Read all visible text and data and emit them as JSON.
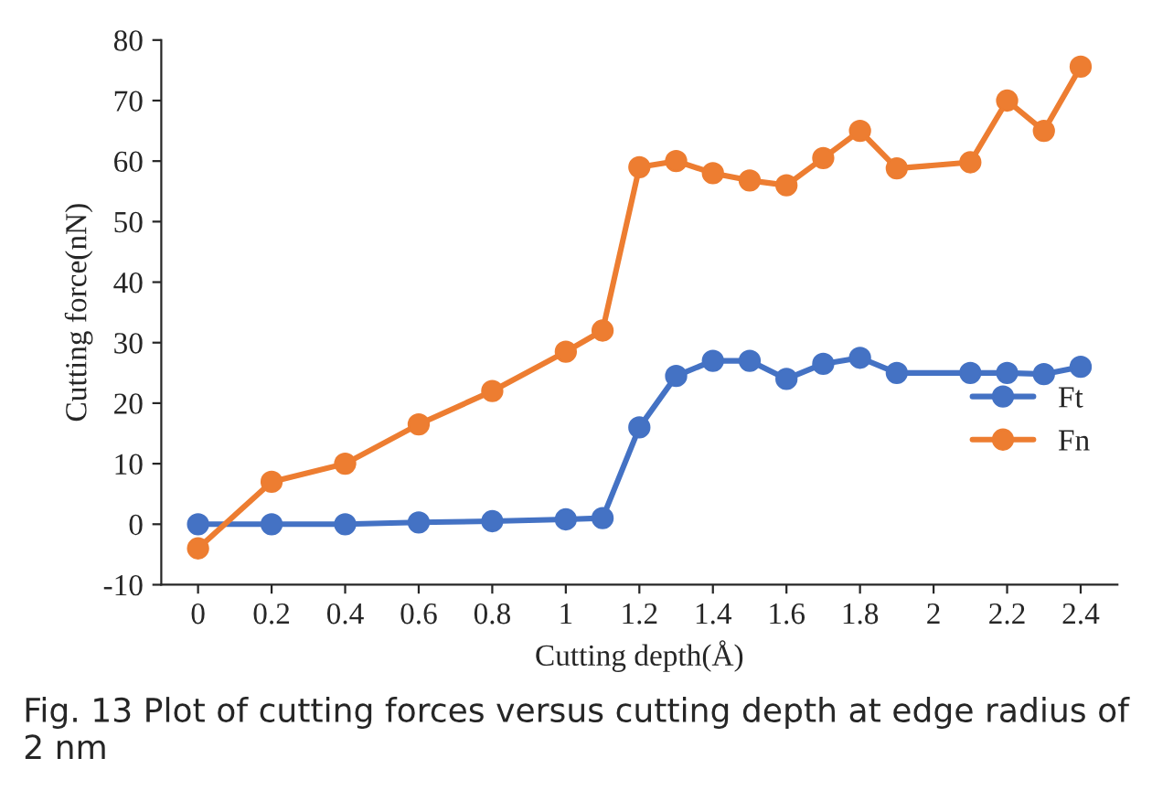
{
  "chart_data": {
    "type": "line",
    "xlabel": "Cutting depth(Å)",
    "ylabel": "Cutting force(nN)",
    "x": [
      0,
      0.2,
      0.4,
      0.6,
      0.8,
      1.0,
      1.1,
      1.2,
      1.3,
      1.4,
      1.5,
      1.6,
      1.7,
      1.8,
      1.9,
      2.1,
      2.2,
      2.3,
      2.4
    ],
    "series": [
      {
        "name": "Ft",
        "color": "#4472c4",
        "values": [
          0,
          0,
          0,
          0.3,
          0.5,
          0.8,
          1,
          16,
          24.5,
          27,
          27,
          24,
          26.5,
          27.5,
          25,
          25,
          25,
          24.8,
          26
        ]
      },
      {
        "name": "Fn",
        "color": "#ed7d31",
        "values": [
          -4,
          7,
          10,
          16.5,
          22,
          28.5,
          32,
          59,
          60,
          58,
          56.8,
          56,
          60.5,
          65,
          58.8,
          59.8,
          70,
          65,
          75.6
        ]
      }
    ],
    "xlim": [
      -0.1,
      2.5
    ],
    "xticks": [
      0,
      0.2,
      0.4,
      0.6,
      0.8,
      1,
      1.2,
      1.4,
      1.6,
      1.8,
      2,
      2.2,
      2.4
    ],
    "ylim": [
      -10,
      80
    ],
    "yticks": [
      -10,
      0,
      10,
      20,
      30,
      40,
      50,
      60,
      70,
      80
    ],
    "marker": "circle",
    "legend": "right",
    "grid": false,
    "annotations": [
      "Fig. 13 Plot of cutting forces versus cutting depth at edge radius of 2 nm"
    ]
  }
}
